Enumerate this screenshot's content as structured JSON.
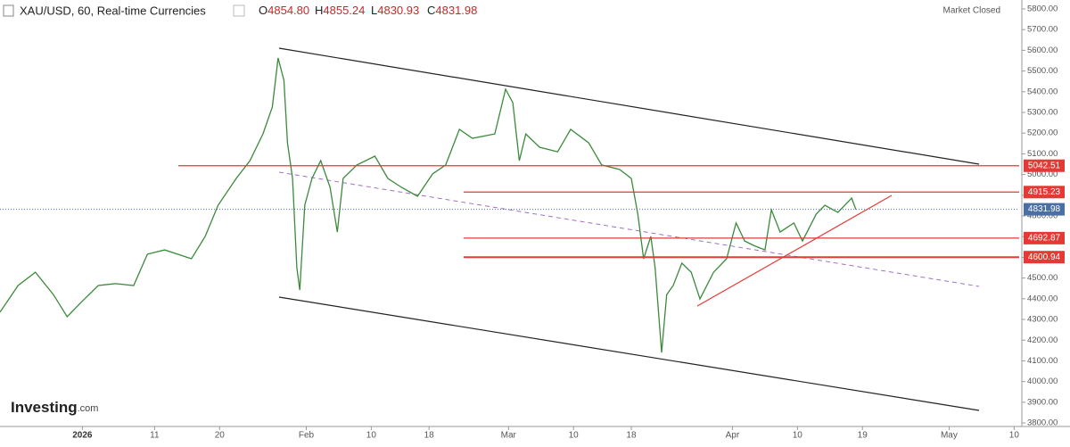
{
  "header": {
    "title": "XAU/USD, 60, Real-time Currencies",
    "ohlc": [
      {
        "key": "O",
        "value": "4854.80"
      },
      {
        "key": "H",
        "value": "4855.24"
      },
      {
        "key": "L",
        "value": "4830.93"
      },
      {
        "key": "C",
        "value": "4831.98"
      }
    ],
    "status": "Market Closed"
  },
  "logo": {
    "name": "Investing",
    "suffix": ".com"
  },
  "chart_data": {
    "type": "line",
    "color": "#3a8a3a",
    "x": [
      -10.4,
      -7.9,
      -5.5,
      -3.0,
      -1.1,
      0.7,
      3.2,
      5.6,
      8.1,
      10.0,
      12.4,
      16.1,
      18.0,
      19.8,
      22.3,
      24.2,
      26.0,
      27.3,
      28.1,
      28.9,
      29.4,
      30.1,
      30.7,
      31.1,
      31.8,
      32.8,
      34.0,
      35.3,
      36.3,
      37.1,
      39.0,
      41.5,
      43.3,
      45.2,
      47.4,
      49.5,
      51.3,
      53.2,
      55.0,
      58.1,
      59.6,
      60.6,
      61.5,
      62.4,
      64.3,
      66.8,
      68.6,
      71.1,
      72.9,
      75.4,
      77.0,
      77.9,
      78.7,
      79.7,
      80.3,
      81.2,
      81.9,
      82.8,
      84.0,
      85.3,
      86.5,
      88.4,
      90.2,
      91.5,
      92.7,
      93.9,
      95.5,
      96.4,
      97.6,
      99.5,
      100.7,
      102.6,
      103.8,
      105.6,
      107.5,
      108.1
    ],
    "values": [
      4335,
      4464,
      4528,
      4420,
      4313,
      4378,
      4464,
      4473,
      4464,
      4615,
      4636,
      4593,
      4701,
      4852,
      4981,
      5067,
      5196,
      5326,
      5563,
      5455,
      5153,
      4981,
      4550,
      4442,
      4852,
      4981,
      5067,
      4938,
      4722,
      4981,
      5046,
      5089,
      4981,
      4938,
      4895,
      5003,
      5046,
      5218,
      5175,
      5196,
      5412,
      5347,
      5067,
      5196,
      5132,
      5110,
      5218,
      5153,
      5046,
      5024,
      4981,
      4809,
      4593,
      4701,
      4550,
      4140,
      4420,
      4464,
      4572,
      4528,
      4399,
      4528,
      4593,
      4766,
      4679,
      4658,
      4636,
      4830,
      4722,
      4766,
      4679,
      4809,
      4852,
      4817,
      4886,
      4831
    ],
    "xlim": [
      -10.4,
      130.7
    ],
    "xticks": [
      {
        "value": 1,
        "label": "2026"
      },
      {
        "value": 11,
        "label": "11"
      },
      {
        "value": 20,
        "label": "20"
      },
      {
        "value": 32,
        "label": "Feb"
      },
      {
        "value": 41,
        "label": "10"
      },
      {
        "value": 49,
        "label": "18"
      },
      {
        "value": 60,
        "label": "Mar"
      },
      {
        "value": 69,
        "label": "10"
      },
      {
        "value": 77,
        "label": "18"
      },
      {
        "value": 91,
        "label": "Apr"
      },
      {
        "value": 100,
        "label": "10"
      },
      {
        "value": 109,
        "label": "19"
      },
      {
        "value": 121,
        "label": "May"
      },
      {
        "value": 130,
        "label": "10"
      }
    ],
    "ylim": [
      3783,
      5843
    ],
    "yticks": [
      {
        "value": 3800,
        "label": "3800.00"
      },
      {
        "value": 3900,
        "label": "3900.00"
      },
      {
        "value": 4000,
        "label": "4000.00"
      },
      {
        "value": 4100,
        "label": "4100.00"
      },
      {
        "value": 4200,
        "label": "4200.00"
      },
      {
        "value": 4300,
        "label": "4300.00"
      },
      {
        "value": 4400,
        "label": "4400.00"
      },
      {
        "value": 4500,
        "label": "4500.00"
      },
      {
        "value": 4600,
        "label": "4600.00"
      },
      {
        "value": 4700,
        "label": "4700.00"
      },
      {
        "value": 4800,
        "label": "4800.00"
      },
      {
        "value": 4900,
        "label": "4900.00"
      },
      {
        "value": 5000,
        "label": "5000.00"
      },
      {
        "value": 5100,
        "label": "5100.00"
      },
      {
        "value": 5200,
        "label": "5200.00"
      },
      {
        "value": 5300,
        "label": "5300.00"
      },
      {
        "value": 5400,
        "label": "5400.00"
      },
      {
        "value": 5500,
        "label": "5500.00"
      },
      {
        "value": 5600,
        "label": "5600.00"
      },
      {
        "value": 5700,
        "label": "5700.00"
      },
      {
        "value": 5800,
        "label": "5800.00"
      }
    ],
    "levels": [
      5042.51,
      4915.23,
      4692.87,
      4600.94
    ],
    "level_color": "#e53935",
    "last_price": 4831.98,
    "last_color": "#4a6fa5"
  }
}
